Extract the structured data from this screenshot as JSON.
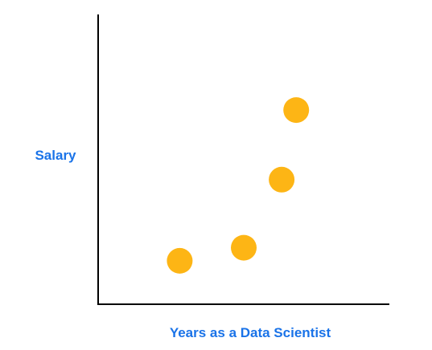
{
  "chart_data": {
    "type": "scatter",
    "title": "",
    "xlabel": "Years as a Data Scientist",
    "ylabel": "Salary",
    "grid": false,
    "ticks": false,
    "legend": "none",
    "xlim": [
      0,
      10
    ],
    "ylim": [
      0,
      10
    ],
    "series": [
      {
        "x": [
          2.8,
          5.0,
          6.3,
          6.8
        ],
        "y": [
          1.5,
          1.95,
          4.3,
          6.7
        ]
      }
    ]
  },
  "colors": {
    "point": "#FDB515",
    "axis": "#000000",
    "label": "#1A73E8",
    "background": "#FFFFFF"
  }
}
